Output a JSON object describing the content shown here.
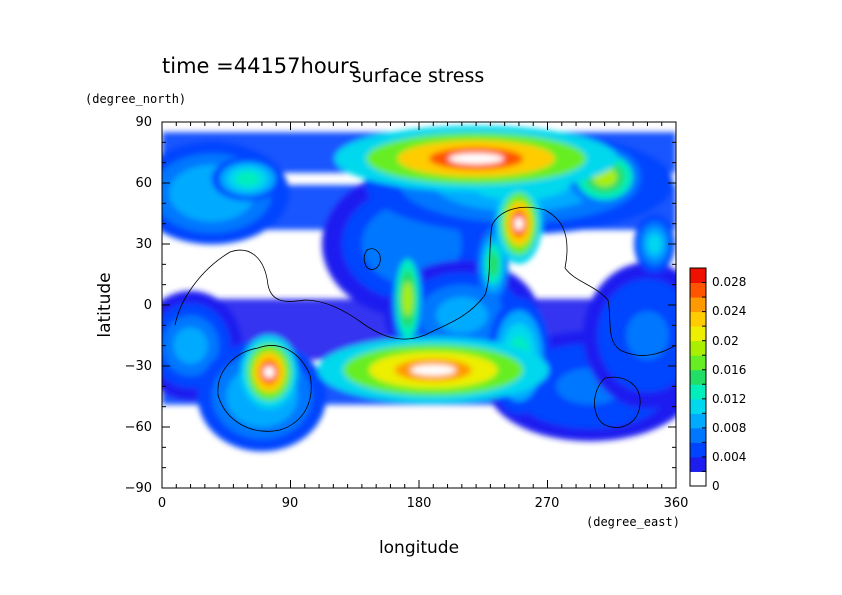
{
  "chart_data": {
    "type": "heatmap",
    "title": "surface stress",
    "subtitle": "time =44157hours",
    "xlabel": "longitude",
    "xunit": "(degree_east)",
    "ylabel": "latitude",
    "yunit": "(degree_north)",
    "xlim": [
      0,
      360
    ],
    "ylim": [
      -90,
      90
    ],
    "xticks": [
      "0",
      "90",
      "180",
      "270",
      "360"
    ],
    "yticks": [
      "90",
      "60",
      "30",
      "0",
      "−30",
      "−60",
      "−90"
    ],
    "colorbar": {
      "min": 0,
      "max": 0.03,
      "labels": [
        "0.028",
        "0.024",
        "0.02",
        "0.016",
        "0.012",
        "0.008",
        "0.004",
        "0"
      ],
      "colors": [
        "#ffffff",
        "#1d1df0",
        "#0044ff",
        "#0077ff",
        "#00aaff",
        "#00d8ee",
        "#00eebb",
        "#22dd66",
        "#66ee22",
        "#aaee00",
        "#eeee00",
        "#ffcc00",
        "#ff9900",
        "#ff5500",
        "#ee1100"
      ]
    },
    "hotspots": [
      {
        "lon": 220,
        "lat": 72,
        "value": 0.03,
        "rx": 55,
        "ry": 9
      },
      {
        "lon": 250,
        "lat": 40,
        "value": 0.03,
        "rx": 9,
        "ry": 11
      },
      {
        "lon": 75,
        "lat": -33,
        "value": 0.03,
        "rx": 11,
        "ry": 10
      },
      {
        "lon": 190,
        "lat": -32,
        "value": 0.028,
        "rx": 45,
        "ry": 9
      },
      {
        "lon": 172,
        "lat": 3,
        "value": 0.02,
        "rx": 6,
        "ry": 14
      },
      {
        "lon": 60,
        "lat": 62,
        "value": 0.014,
        "rx": 14,
        "ry": 6
      },
      {
        "lon": 310,
        "lat": 63,
        "value": 0.02,
        "rx": 14,
        "ry": 8
      },
      {
        "lon": 232,
        "lat": 20,
        "value": 0.016,
        "rx": 6,
        "ry": 10
      },
      {
        "lon": 345,
        "lat": 30,
        "value": 0.012,
        "rx": 8,
        "ry": 8
      },
      {
        "lon": 250,
        "lat": -25,
        "value": 0.014,
        "rx": 12,
        "ry": 16
      },
      {
        "lon": 35,
        "lat": 55,
        "value": 0.01,
        "rx": 30,
        "ry": 14
      },
      {
        "lon": 250,
        "lat": 60,
        "value": 0.012,
        "rx": 60,
        "ry": 14
      },
      {
        "lon": 20,
        "lat": -20,
        "value": 0.008,
        "rx": 20,
        "ry": 15
      },
      {
        "lon": 175,
        "lat": 30,
        "value": 0.007,
        "rx": 35,
        "ry": 20
      },
      {
        "lon": 210,
        "lat": -5,
        "value": 0.008,
        "rx": 30,
        "ry": 15
      },
      {
        "lon": 300,
        "lat": -40,
        "value": 0.006,
        "rx": 40,
        "ry": 15
      },
      {
        "lon": 340,
        "lat": -15,
        "value": 0.006,
        "rx": 25,
        "ry": 20
      },
      {
        "lon": 70,
        "lat": -45,
        "value": 0.01,
        "rx": 25,
        "ry": 15
      }
    ],
    "grid": false
  }
}
